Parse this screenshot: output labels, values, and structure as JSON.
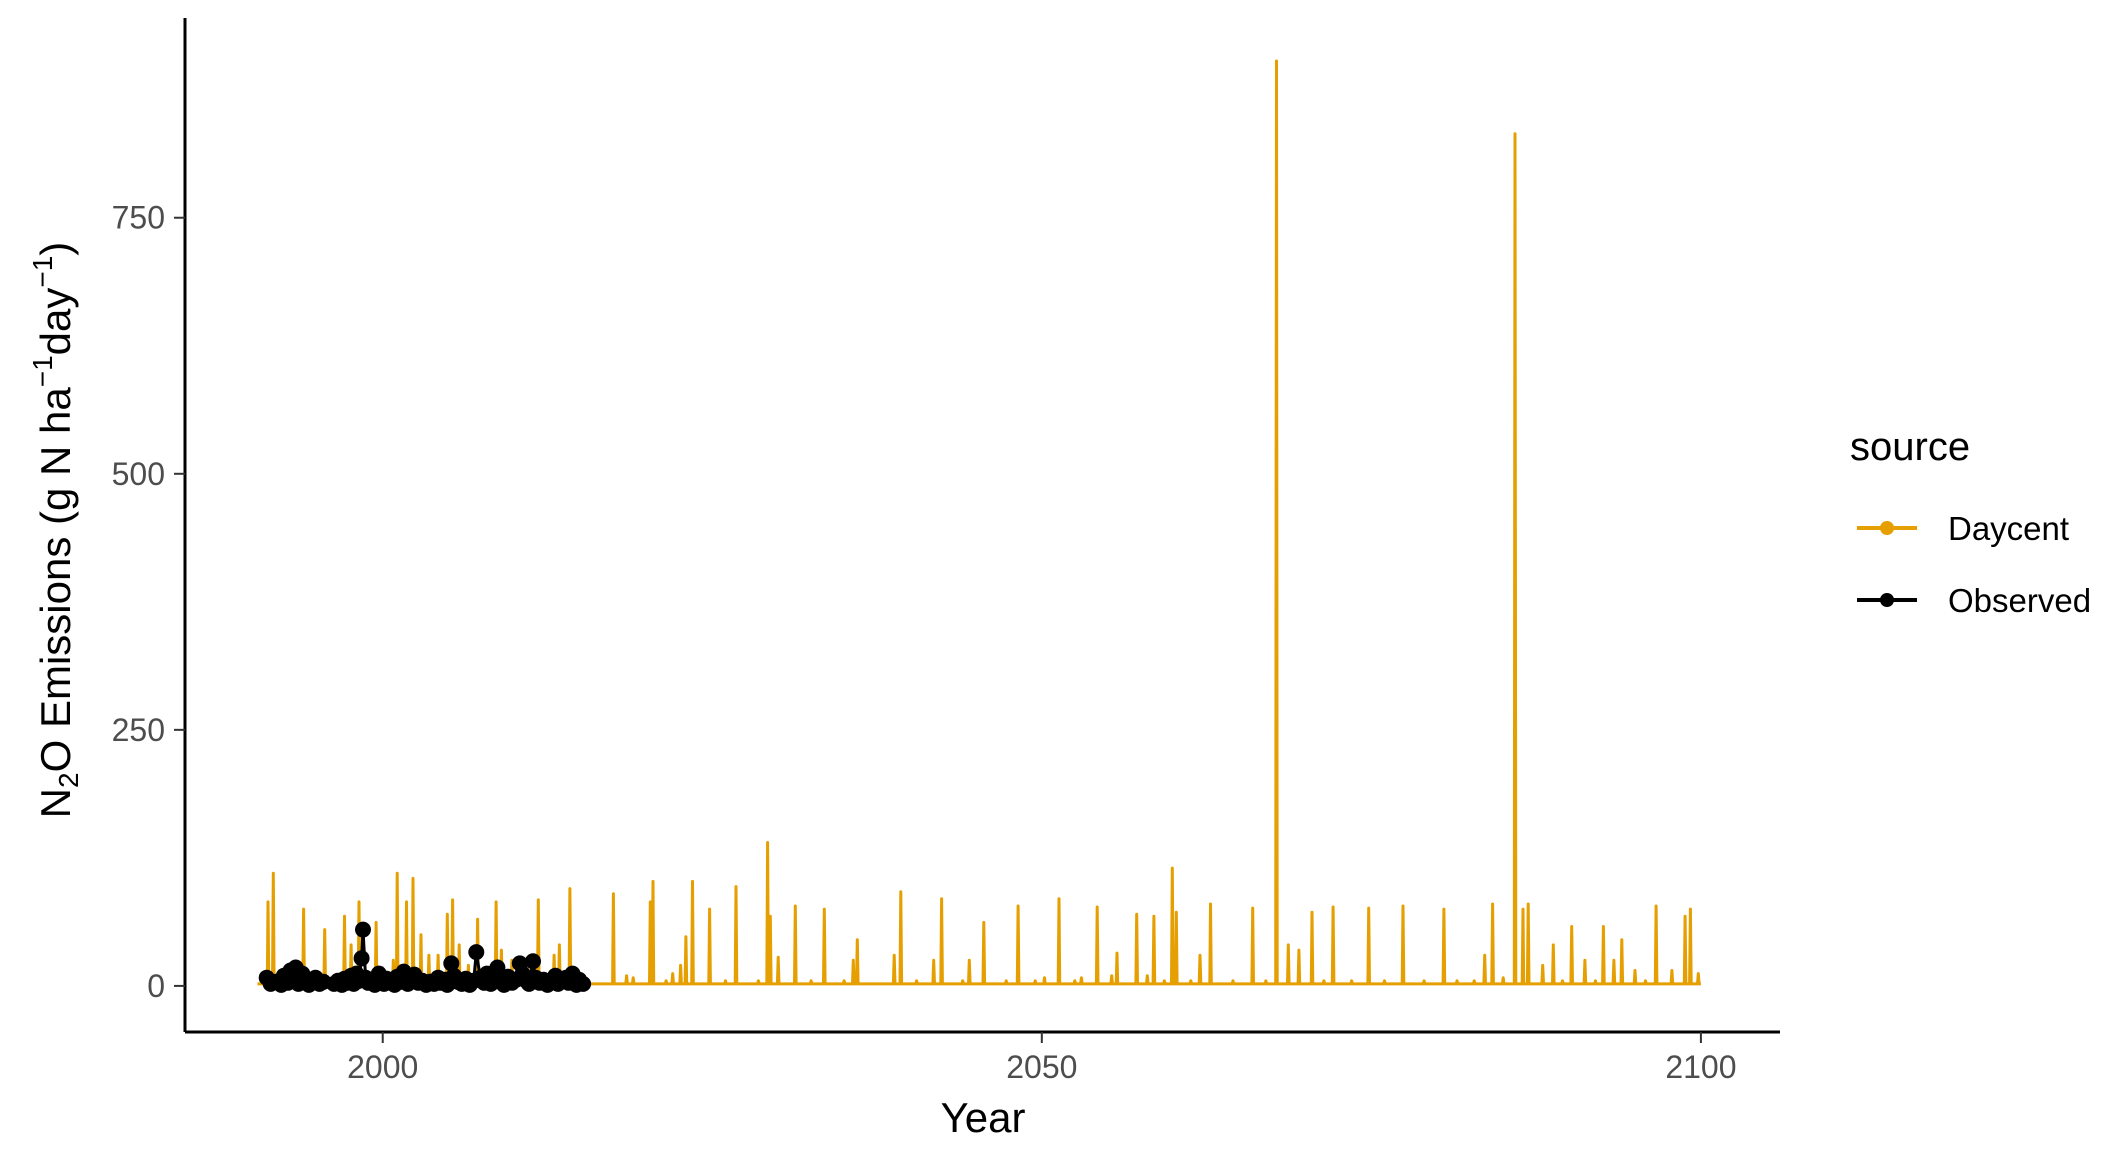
{
  "chart_data": {
    "type": "line",
    "title": "",
    "xlabel": "Year",
    "ylabel": {
      "prefix": "N",
      "sub": "2",
      "main": "O Emissions (g N ha",
      "sup1": "−1",
      "mid": "day",
      "sup2": "−1",
      "suffix": ")"
    },
    "xlim": [
      1985,
      2106
    ],
    "ylim": [
      -45,
      945
    ],
    "xticks": [
      2000,
      2050,
      2100
    ],
    "xtick_labels": [
      "2000",
      "2050",
      "2100"
    ],
    "yticks": [
      0,
      250,
      500,
      750
    ],
    "ytick_labels": [
      "0",
      "250",
      "500",
      "750"
    ],
    "grid": false,
    "legend": {
      "title": "source",
      "position": "right"
    },
    "series": [
      {
        "name": "Daycent",
        "color": "#E69F00",
        "baseline": {
          "start": 1990.5,
          "end": 2100.0,
          "value": 2
        },
        "peaks": [
          [
            1991.3,
            82
          ],
          [
            1991.7,
            110
          ],
          [
            1993.2,
            20
          ],
          [
            1994.0,
            75
          ],
          [
            1995.2,
            10
          ],
          [
            1995.6,
            55
          ],
          [
            1997.1,
            68
          ],
          [
            1997.6,
            40
          ],
          [
            1998.2,
            82
          ],
          [
            1998.7,
            15
          ],
          [
            1999.5,
            62
          ],
          [
            2000.8,
            25
          ],
          [
            2001.1,
            110
          ],
          [
            2001.8,
            82
          ],
          [
            2002.3,
            105
          ],
          [
            2002.9,
            50
          ],
          [
            2003.5,
            30
          ],
          [
            2004.2,
            30
          ],
          [
            2004.9,
            70
          ],
          [
            2005.3,
            84
          ],
          [
            2005.8,
            40
          ],
          [
            2006.5,
            20
          ],
          [
            2007.2,
            65
          ],
          [
            2007.9,
            12
          ],
          [
            2008.6,
            82
          ],
          [
            2009.0,
            35
          ],
          [
            2009.8,
            25
          ],
          [
            2011.2,
            15
          ],
          [
            2011.8,
            84
          ],
          [
            2013.0,
            30
          ],
          [
            2013.4,
            40
          ],
          [
            2014.2,
            95
          ],
          [
            2015.2,
            10
          ],
          [
            2017.5,
            90
          ],
          [
            2018.5,
            10
          ],
          [
            2019.0,
            8
          ],
          [
            2020.3,
            82
          ],
          [
            2020.5,
            102
          ],
          [
            2021.5,
            5
          ],
          [
            2022.0,
            12
          ],
          [
            2022.6,
            20
          ],
          [
            2023.0,
            48
          ],
          [
            2023.5,
            102
          ],
          [
            2024.8,
            75
          ],
          [
            2026.0,
            5
          ],
          [
            2026.8,
            97
          ],
          [
            2028.5,
            5
          ],
          [
            2029.2,
            140
          ],
          [
            2029.4,
            68
          ],
          [
            2030.0,
            28
          ],
          [
            2031.3,
            78
          ],
          [
            2032.5,
            5
          ],
          [
            2033.5,
            75
          ],
          [
            2035.0,
            5
          ],
          [
            2035.7,
            25
          ],
          [
            2036.0,
            45
          ],
          [
            2038.8,
            30
          ],
          [
            2039.3,
            92
          ],
          [
            2040.5,
            5
          ],
          [
            2041.8,
            25
          ],
          [
            2042.4,
            85
          ],
          [
            2044.0,
            5
          ],
          [
            2044.5,
            25
          ],
          [
            2045.6,
            62
          ],
          [
            2047.3,
            5
          ],
          [
            2048.2,
            78
          ],
          [
            2049.5,
            5
          ],
          [
            2050.2,
            8
          ],
          [
            2051.3,
            85
          ],
          [
            2052.5,
            5
          ],
          [
            2053.0,
            8
          ],
          [
            2054.2,
            77
          ],
          [
            2055.3,
            10
          ],
          [
            2055.7,
            32
          ],
          [
            2057.2,
            70
          ],
          [
            2058.0,
            10
          ],
          [
            2058.5,
            68
          ],
          [
            2059.3,
            5
          ],
          [
            2059.9,
            115
          ],
          [
            2060.2,
            72
          ],
          [
            2061.3,
            5
          ],
          [
            2062.0,
            30
          ],
          [
            2062.8,
            80
          ],
          [
            2064.5,
            5
          ],
          [
            2066.0,
            76
          ],
          [
            2067.0,
            5
          ],
          [
            2067.8,
            903
          ],
          [
            2068.7,
            40
          ],
          [
            2069.5,
            35
          ],
          [
            2070.5,
            72
          ],
          [
            2071.4,
            5
          ],
          [
            2072.1,
            77
          ],
          [
            2073.5,
            5
          ],
          [
            2074.8,
            76
          ],
          [
            2076.0,
            5
          ],
          [
            2077.4,
            78
          ],
          [
            2079.0,
            5
          ],
          [
            2080.5,
            75
          ],
          [
            2081.5,
            5
          ],
          [
            2082.8,
            5
          ],
          [
            2083.6,
            30
          ],
          [
            2084.2,
            80
          ],
          [
            2085.0,
            8
          ],
          [
            2085.9,
            832
          ],
          [
            2086.5,
            75
          ],
          [
            2086.9,
            80
          ],
          [
            2088.0,
            20
          ],
          [
            2088.8,
            40
          ],
          [
            2089.5,
            5
          ],
          [
            2090.2,
            58
          ],
          [
            2091.2,
            25
          ],
          [
            2092.0,
            5
          ],
          [
            2092.6,
            58
          ],
          [
            2093.4,
            25
          ],
          [
            2094.0,
            45
          ],
          [
            2095.0,
            15
          ],
          [
            2095.8,
            5
          ],
          [
            2096.6,
            78
          ],
          [
            2097.8,
            15
          ],
          [
            2098.8,
            68
          ],
          [
            2099.2,
            75
          ],
          [
            2099.8,
            12
          ]
        ]
      },
      {
        "name": "Observed",
        "color": "#000000",
        "points": [
          [
            1991.2,
            8
          ],
          [
            1991.5,
            2
          ],
          [
            1991.9,
            4
          ],
          [
            1992.3,
            1
          ],
          [
            1992.5,
            10
          ],
          [
            1992.8,
            3
          ],
          [
            1993.0,
            15
          ],
          [
            1993.2,
            6
          ],
          [
            1993.4,
            18
          ],
          [
            1993.6,
            2
          ],
          [
            1993.9,
            12
          ],
          [
            1994.1,
            5
          ],
          [
            1994.4,
            1
          ],
          [
            1994.6,
            3
          ],
          [
            1994.9,
            8
          ],
          [
            1995.2,
            2
          ],
          [
            1995.5,
            4
          ],
          [
            1996.3,
            2
          ],
          [
            1996.6,
            5
          ],
          [
            1996.9,
            1
          ],
          [
            1997.1,
            7
          ],
          [
            1997.3,
            3
          ],
          [
            1997.6,
            10
          ],
          [
            1997.8,
            2
          ],
          [
            1998.0,
            12
          ],
          [
            1998.2,
            5
          ],
          [
            1998.4,
            27
          ],
          [
            1998.5,
            55
          ],
          [
            1998.7,
            8
          ],
          [
            1998.9,
            3
          ],
          [
            1999.2,
            6
          ],
          [
            1999.4,
            1
          ],
          [
            1999.7,
            12
          ],
          [
            1999.9,
            4
          ],
          [
            2000.1,
            2
          ],
          [
            2000.3,
            7
          ],
          [
            2000.6,
            3
          ],
          [
            2000.9,
            1
          ],
          [
            2001.1,
            9
          ],
          [
            2001.4,
            4
          ],
          [
            2001.6,
            14
          ],
          [
            2001.9,
            2
          ],
          [
            2002.1,
            6
          ],
          [
            2002.4,
            11
          ],
          [
            2002.7,
            3
          ],
          [
            2003.0,
            5
          ],
          [
            2003.3,
            1
          ],
          [
            2003.6,
            4
          ],
          [
            2003.9,
            2
          ],
          [
            2004.2,
            8
          ],
          [
            2004.4,
            3
          ],
          [
            2004.7,
            6
          ],
          [
            2004.9,
            1
          ],
          [
            2005.2,
            22
          ],
          [
            2005.4,
            10
          ],
          [
            2005.7,
            4
          ],
          [
            2006.0,
            2
          ],
          [
            2006.3,
            7
          ],
          [
            2006.6,
            1
          ],
          [
            2006.9,
            5
          ],
          [
            2007.1,
            33
          ],
          [
            2007.4,
            8
          ],
          [
            2007.7,
            3
          ],
          [
            2007.9,
            12
          ],
          [
            2008.2,
            2
          ],
          [
            2008.5,
            6
          ],
          [
            2008.7,
            18
          ],
          [
            2009.0,
            4
          ],
          [
            2009.2,
            1
          ],
          [
            2009.5,
            9
          ],
          [
            2009.8,
            3
          ],
          [
            2010.1,
            6
          ],
          [
            2010.4,
            22
          ],
          [
            2010.6,
            12
          ],
          [
            2010.9,
            5
          ],
          [
            2011.1,
            2
          ],
          [
            2011.4,
            24
          ],
          [
            2011.6,
            8
          ],
          [
            2011.9,
            3
          ],
          [
            2012.2,
            6
          ],
          [
            2012.5,
            1
          ],
          [
            2012.8,
            4
          ],
          [
            2013.1,
            10
          ],
          [
            2013.3,
            2
          ],
          [
            2013.6,
            5
          ],
          [
            2013.9,
            8
          ],
          [
            2014.1,
            3
          ],
          [
            2014.4,
            12
          ],
          [
            2014.7,
            1
          ],
          [
            2014.9,
            6
          ],
          [
            2015.2,
            2
          ]
        ]
      }
    ]
  }
}
